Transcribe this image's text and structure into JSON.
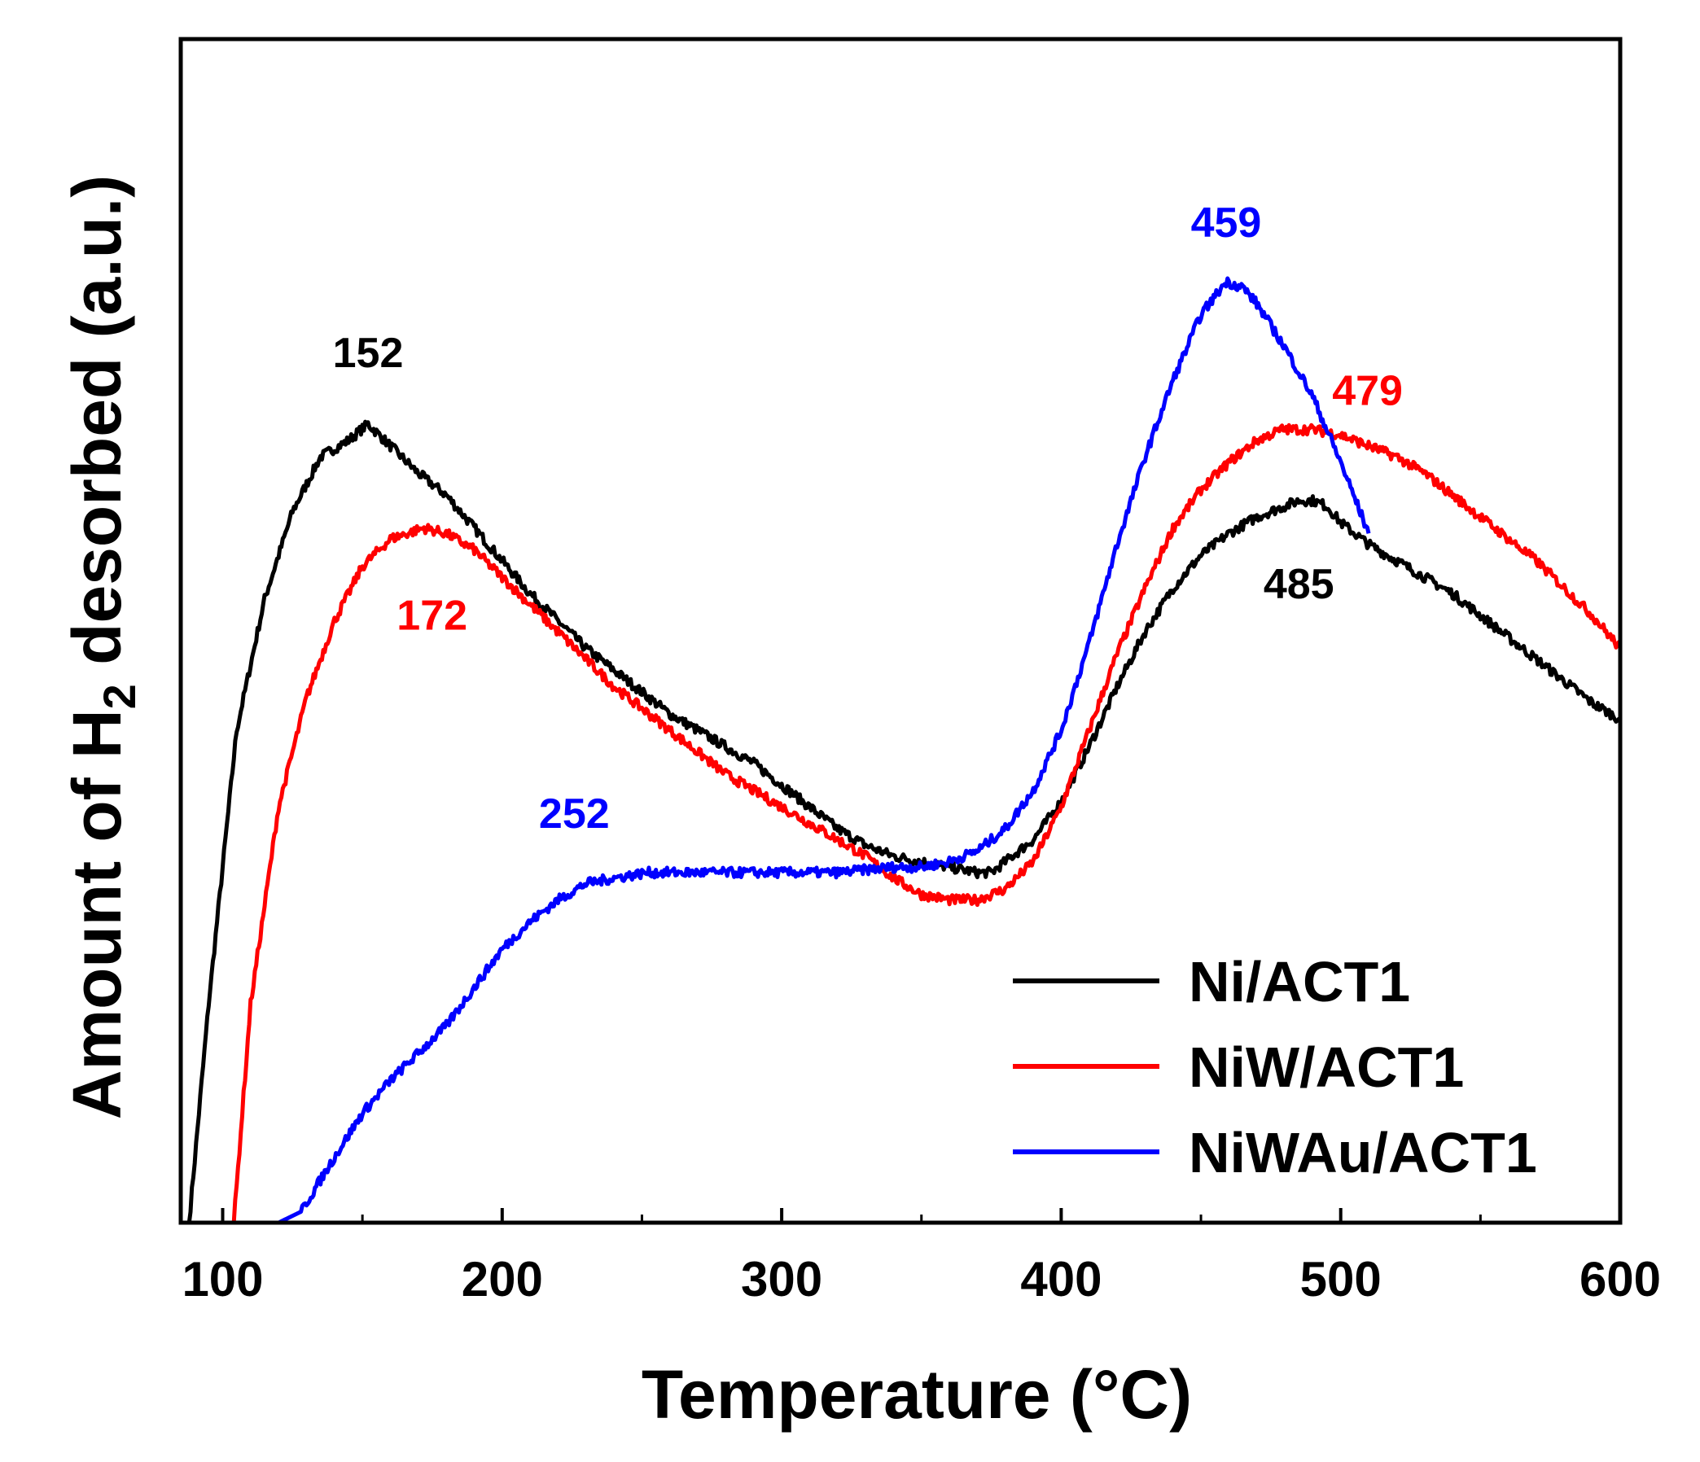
{
  "chart_data": {
    "type": "line",
    "title": "",
    "xlabel": "Temperature (°C)",
    "ylabel_parts": {
      "prefix": "Amount of H",
      "subscript": "2",
      "suffix": " desorbed (a.u.)"
    },
    "xlim": [
      85,
      600
    ],
    "ylim": [
      0,
      100
    ],
    "x_ticks": [
      100,
      200,
      300,
      400,
      500,
      600
    ],
    "x_minor_ticks": [
      150,
      250,
      350,
      450,
      550
    ],
    "y_ticks_shown": false,
    "legend_position": "lower-right",
    "series": [
      {
        "name": "Ni/ACT1",
        "color": "#000000",
        "points": [
          [
            88,
            0
          ],
          [
            95,
            20
          ],
          [
            105,
            45
          ],
          [
            115,
            57
          ],
          [
            125,
            65
          ],
          [
            135,
            70
          ],
          [
            145,
            71.5
          ],
          [
            152,
            73
          ],
          [
            160,
            71
          ],
          [
            170,
            68.5
          ],
          [
            180,
            66.5
          ],
          [
            190,
            63.5
          ],
          [
            200,
            60.5
          ],
          [
            210,
            57.5
          ],
          [
            220,
            55
          ],
          [
            230,
            52.5
          ],
          [
            240,
            50.5
          ],
          [
            250,
            48.5
          ],
          [
            260,
            46.5
          ],
          [
            270,
            45
          ],
          [
            280,
            43.5
          ],
          [
            290,
            42
          ],
          [
            300,
            40
          ],
          [
            310,
            38
          ],
          [
            320,
            36
          ],
          [
            330,
            34.5
          ],
          [
            340,
            33.5
          ],
          [
            350,
            33
          ],
          [
            360,
            32.5
          ],
          [
            370,
            32
          ],
          [
            375,
            32
          ],
          [
            380,
            33
          ],
          [
            390,
            35
          ],
          [
            400,
            38.5
          ],
          [
            410,
            43.5
          ],
          [
            420,
            49
          ],
          [
            430,
            54
          ],
          [
            440,
            58
          ],
          [
            450,
            61
          ],
          [
            460,
            63
          ],
          [
            470,
            64.5
          ],
          [
            480,
            65.5
          ],
          [
            485,
            66
          ],
          [
            490,
            66
          ],
          [
            495,
            65.5
          ],
          [
            500,
            64
          ],
          [
            510,
            62
          ],
          [
            520,
            60.5
          ],
          [
            530,
            59
          ],
          [
            540,
            57.5
          ],
          [
            550,
            55.5
          ],
          [
            560,
            53.5
          ],
          [
            570,
            51.5
          ],
          [
            580,
            49.5
          ],
          [
            590,
            47.5
          ],
          [
            600,
            46
          ]
        ]
      },
      {
        "name": "NiW/ACT1",
        "color": "#ff0000",
        "points": [
          [
            104,
            0
          ],
          [
            110,
            20
          ],
          [
            120,
            38
          ],
          [
            130,
            48
          ],
          [
            140,
            55
          ],
          [
            150,
            60
          ],
          [
            160,
            62.5
          ],
          [
            172,
            63.5
          ],
          [
            180,
            63
          ],
          [
            190,
            61.5
          ],
          [
            200,
            59
          ],
          [
            210,
            56.5
          ],
          [
            220,
            54
          ],
          [
            230,
            51.5
          ],
          [
            240,
            49
          ],
          [
            250,
            47
          ],
          [
            260,
            45
          ],
          [
            270,
            43
          ],
          [
            280,
            41
          ],
          [
            290,
            39.5
          ],
          [
            300,
            38
          ],
          [
            310,
            36.5
          ],
          [
            320,
            35
          ],
          [
            330,
            33.5
          ],
          [
            340,
            31.5
          ],
          [
            350,
            30
          ],
          [
            360,
            29.5
          ],
          [
            370,
            29.5
          ],
          [
            380,
            30.5
          ],
          [
            390,
            33
          ],
          [
            400,
            38
          ],
          [
            410,
            45
          ],
          [
            420,
            52
          ],
          [
            430,
            58
          ],
          [
            440,
            63.5
          ],
          [
            450,
            67
          ],
          [
            460,
            69.5
          ],
          [
            470,
            71.5
          ],
          [
            479,
            72.5
          ],
          [
            490,
            72.5
          ],
          [
            500,
            72
          ],
          [
            510,
            71
          ],
          [
            520,
            70
          ],
          [
            530,
            68.5
          ],
          [
            540,
            66.5
          ],
          [
            550,
            64.5
          ],
          [
            560,
            62.5
          ],
          [
            570,
            60.5
          ],
          [
            580,
            58
          ],
          [
            590,
            55.5
          ],
          [
            600,
            52.5
          ]
        ]
      },
      {
        "name": "NiWAu/ACT1",
        "color": "#0000ff",
        "points": [
          [
            85,
            0
          ],
          [
            120,
            0
          ],
          [
            128,
            1
          ],
          [
            140,
            6
          ],
          [
            150,
            10
          ],
          [
            160,
            13
          ],
          [
            170,
            15.5
          ],
          [
            180,
            18
          ],
          [
            190,
            21.5
          ],
          [
            200,
            25
          ],
          [
            210,
            27.5
          ],
          [
            220,
            29.5
          ],
          [
            230,
            31
          ],
          [
            240,
            31.5
          ],
          [
            252,
            32
          ],
          [
            260,
            32
          ],
          [
            280,
            32
          ],
          [
            300,
            32
          ],
          [
            320,
            32
          ],
          [
            340,
            32.5
          ],
          [
            350,
            32.5
          ],
          [
            360,
            33
          ],
          [
            370,
            34
          ],
          [
            380,
            36
          ],
          [
            390,
            39.5
          ],
          [
            400,
            45
          ],
          [
            410,
            53
          ],
          [
            420,
            62
          ],
          [
            430,
            70
          ],
          [
            440,
            77
          ],
          [
            450,
            83
          ],
          [
            459,
            86
          ],
          [
            465,
            85.5
          ],
          [
            470,
            84
          ],
          [
            480,
            80
          ],
          [
            490,
            75.5
          ],
          [
            500,
            69.5
          ],
          [
            510,
            63
          ]
        ]
      }
    ],
    "annotations": [
      {
        "text": "152",
        "x": 152,
        "y": 73,
        "color": "#000000"
      },
      {
        "text": "485",
        "x": 485,
        "y": 66,
        "color": "#000000"
      },
      {
        "text": "172",
        "x": 172,
        "y": 63.5,
        "color": "#ff0000"
      },
      {
        "text": "479",
        "x": 479,
        "y": 72.5,
        "color": "#ff0000"
      },
      {
        "text": "252",
        "x": 252,
        "y": 32,
        "color": "#0000ff"
      },
      {
        "text": "459",
        "x": 459,
        "y": 86,
        "color": "#0000ff"
      }
    ]
  }
}
